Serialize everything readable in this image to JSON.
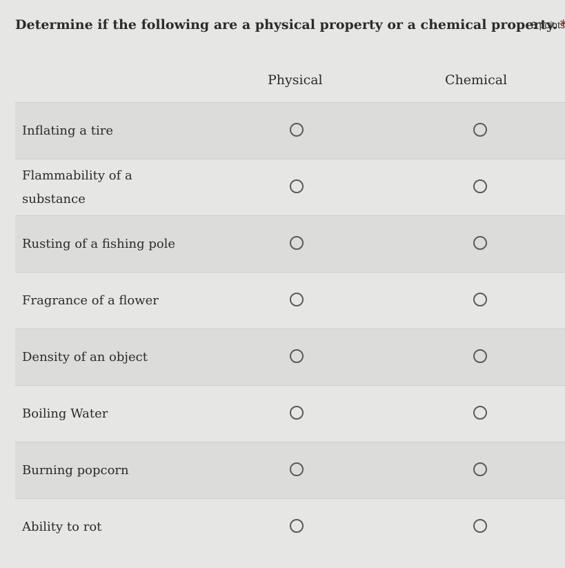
{
  "question": {
    "text": "Determine if the following are a physical property or a chemical property.",
    "required_marker": "*",
    "points": "8 points"
  },
  "columns": {
    "physical": "Physical",
    "chemical": "Chemical"
  },
  "rows": [
    {
      "label": "Inflating a tire"
    },
    {
      "label": "Flammability of a substance"
    },
    {
      "label": "Rusting of a fishing pole"
    },
    {
      "label": "Fragrance of a flower"
    },
    {
      "label": "Density of an object"
    },
    {
      "label": "Boiling Water"
    },
    {
      "label": "Burning popcorn"
    },
    {
      "label": "Ability to rot"
    }
  ]
}
